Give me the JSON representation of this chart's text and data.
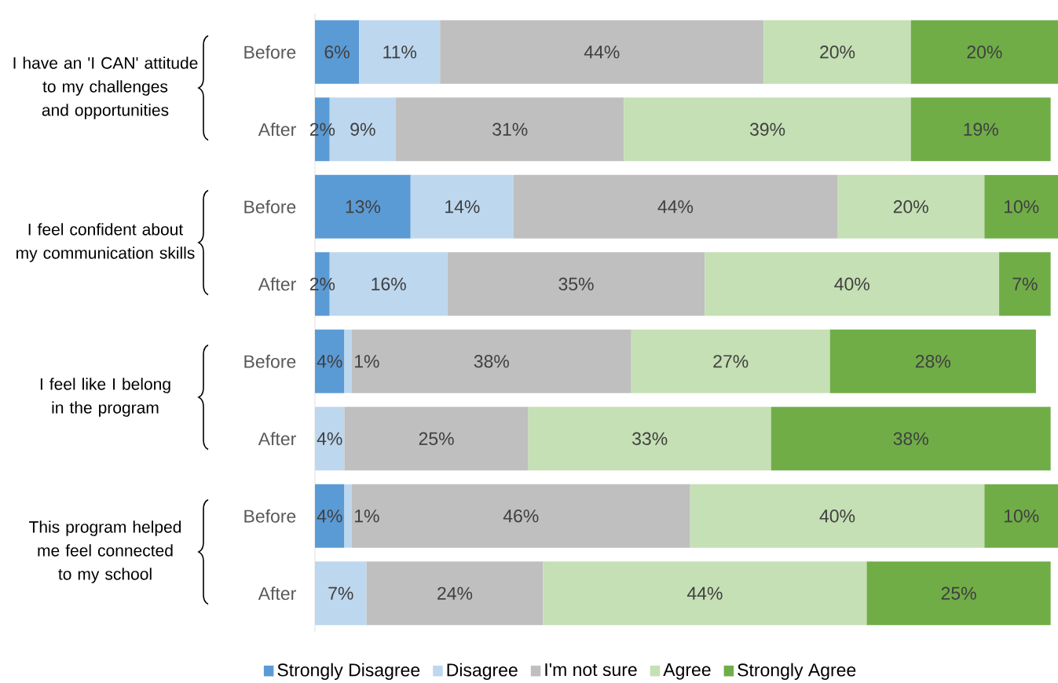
{
  "chart_data": {
    "type": "bar",
    "orientation": "horizontal",
    "stacked": true,
    "legend": "bottom",
    "categories": [
      "Before",
      "After",
      "Before",
      "After",
      "Before",
      "After",
      "Before",
      "After"
    ],
    "annotations": [
      "I have an 'I CAN' attitude to my challenges and opportunities",
      "I feel confident about my communication skills",
      "I feel like I belong in the program",
      "This program helped me feel connected to my school"
    ],
    "series": [
      {
        "name": "Strongly Disagree",
        "color": "#5b9bd5",
        "values": [
          6,
          2,
          13,
          2,
          4,
          null,
          4,
          null
        ],
        "value_labels": [
          "6%",
          "2%",
          "13%",
          "2%",
          "4%",
          null,
          "4%",
          null
        ]
      },
      {
        "name": "Disagree",
        "color": "#bdd7ee",
        "values": [
          11,
          9,
          14,
          16,
          1,
          4,
          1,
          7
        ],
        "value_labels": [
          "11%",
          "9%",
          "14%",
          "16%",
          "1%",
          "4%",
          "1%",
          "7%"
        ]
      },
      {
        "name": "I'm not sure",
        "color": "#bfbfbf",
        "values": [
          44,
          31,
          44,
          35,
          38,
          25,
          46,
          24
        ],
        "value_labels": [
          "44%",
          "31%",
          "44%",
          "35%",
          "38%",
          "25%",
          "46%",
          "24%"
        ]
      },
      {
        "name": "Agree",
        "color": "#c5e0b4",
        "values": [
          20,
          39,
          20,
          40,
          27,
          33,
          40,
          44
        ],
        "value_labels": [
          "20%",
          "39%",
          "20%",
          "40%",
          "27%",
          "33%",
          "40%",
          "44%"
        ]
      },
      {
        "name": "Strongly Agree",
        "color": "#70ad47",
        "values": [
          20,
          19,
          10,
          7,
          28,
          38,
          10,
          25
        ],
        "value_labels": [
          "20%",
          "19%",
          "10%",
          "7%",
          "28%",
          "38%",
          "10%",
          "25%"
        ]
      }
    ]
  }
}
